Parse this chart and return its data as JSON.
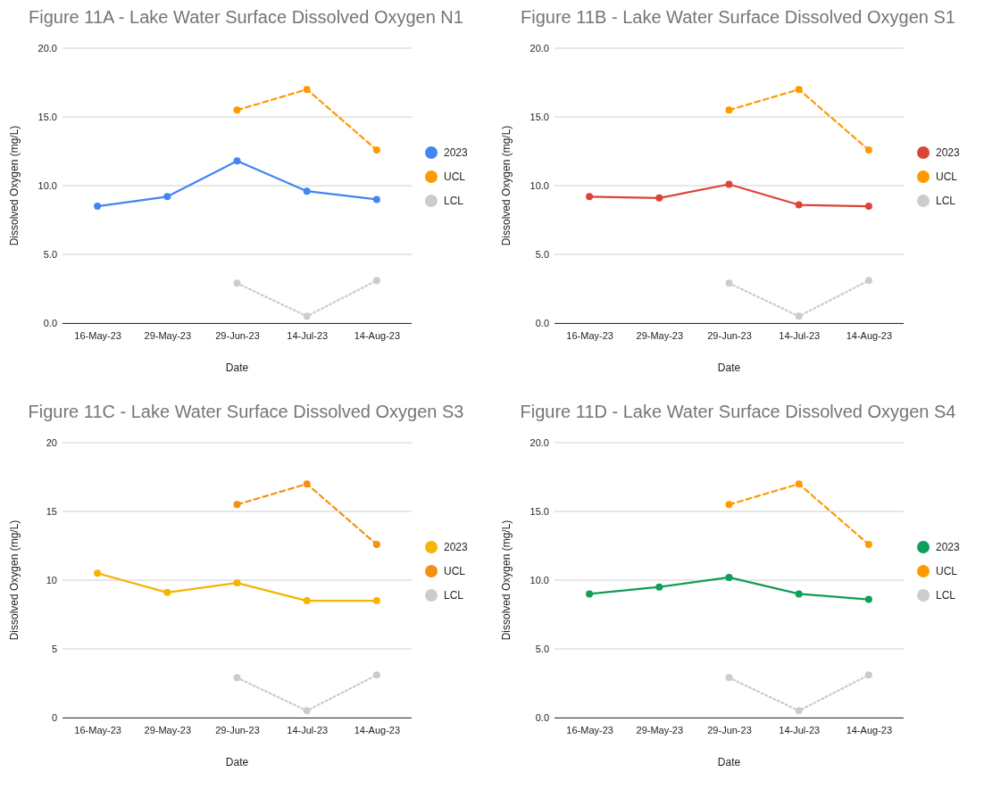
{
  "chart_data": [
    {
      "type": "line",
      "title": "Figure 11A - Lake Water Surface Dissolved Oxygen N1",
      "xlabel": "Date",
      "ylabel": "Dissolved Oxygen (mg/L)",
      "categories": [
        "16-May-23",
        "29-May-23",
        "29-Jun-23",
        "14-Jul-23",
        "14-Aug-23"
      ],
      "ylim": [
        0,
        20
      ],
      "yticks": [
        {
          "value": 0,
          "label": "0.0"
        },
        {
          "value": 5,
          "label": "5.0"
        },
        {
          "value": 10,
          "label": "10.0"
        },
        {
          "value": 15,
          "label": "15.0"
        },
        {
          "value": 20,
          "label": "20.0"
        }
      ],
      "grid": "y",
      "legend": "right",
      "marker": "circle",
      "series": [
        {
          "name": "2023",
          "color": "#4285f4",
          "line_style": "solid",
          "values": [
            8.5,
            9.2,
            11.8,
            9.6,
            9.0
          ]
        },
        {
          "name": "UCL",
          "color": "#ff9900",
          "line_style": "dashed",
          "values": [
            null,
            null,
            15.5,
            17.0,
            12.6
          ]
        },
        {
          "name": "LCL",
          "color": "#cccccc",
          "line_style": "dotted",
          "values": [
            null,
            null,
            2.9,
            0.5,
            3.1
          ]
        }
      ]
    },
    {
      "type": "line",
      "title": "Figure 11B - Lake Water Surface Dissolved Oxygen S1",
      "xlabel": "Date",
      "ylabel": "Dissolved Oxygen (mg/L)",
      "categories": [
        "16-May-23",
        "29-May-23",
        "29-Jun-23",
        "14-Jul-23",
        "14-Aug-23"
      ],
      "ylim": [
        0,
        20
      ],
      "yticks": [
        {
          "value": 0,
          "label": "0.0"
        },
        {
          "value": 5,
          "label": "5.0"
        },
        {
          "value": 10,
          "label": "10.0"
        },
        {
          "value": 15,
          "label": "15.0"
        },
        {
          "value": 20,
          "label": "20.0"
        }
      ],
      "grid": "y",
      "legend": "right",
      "marker": "circle",
      "series": [
        {
          "name": "2023",
          "color": "#db4437",
          "line_style": "solid",
          "values": [
            9.2,
            9.1,
            10.1,
            8.6,
            8.5
          ]
        },
        {
          "name": "UCL",
          "color": "#ff9900",
          "line_style": "dashed",
          "values": [
            null,
            null,
            15.5,
            17.0,
            12.6
          ]
        },
        {
          "name": "LCL",
          "color": "#cccccc",
          "line_style": "dotted",
          "values": [
            null,
            null,
            2.9,
            0.5,
            3.1
          ]
        }
      ]
    },
    {
      "type": "line",
      "title": "Figure 11C - Lake Water Surface Dissolved Oxygen S3",
      "xlabel": "Date",
      "ylabel": "Dissolved Oxygen (mg/L)",
      "categories": [
        "16-May-23",
        "29-May-23",
        "29-Jun-23",
        "14-Jul-23",
        "14-Aug-23"
      ],
      "ylim": [
        0,
        20
      ],
      "yticks": [
        0,
        5,
        10,
        15,
        20
      ],
      "grid": "y",
      "legend": "right",
      "marker": "circle",
      "series": [
        {
          "name": "2023",
          "color": "#f4b400",
          "line_style": "solid",
          "values": [
            10.5,
            9.1,
            9.8,
            8.5,
            8.5
          ]
        },
        {
          "name": "UCL",
          "color": "#f5900f",
          "line_style": "dashed",
          "values": [
            null,
            null,
            15.5,
            17.0,
            12.6
          ]
        },
        {
          "name": "LCL",
          "color": "#cccccc",
          "line_style": "dotted",
          "values": [
            null,
            null,
            2.9,
            0.5,
            3.1
          ]
        }
      ]
    },
    {
      "type": "line",
      "title": "Figure 11D - Lake Water Surface Dissolved Oxygen S4",
      "xlabel": "Date",
      "ylabel": "Dissolved Oxygen (mg/L)",
      "categories": [
        "16-May-23",
        "29-May-23",
        "29-Jun-23",
        "14-Jul-23",
        "14-Aug-23"
      ],
      "ylim": [
        0,
        20
      ],
      "yticks": [
        {
          "value": 0,
          "label": "0.0"
        },
        {
          "value": 5,
          "label": "5.0"
        },
        {
          "value": 10,
          "label": "10.0"
        },
        {
          "value": 15,
          "label": "15.0"
        },
        {
          "value": 20,
          "label": "20.0"
        }
      ],
      "grid": "y",
      "legend": "right",
      "marker": "circle",
      "series": [
        {
          "name": "2023",
          "color": "#0f9d58",
          "line_style": "solid",
          "values": [
            9.0,
            9.5,
            10.2,
            9.0,
            8.6
          ]
        },
        {
          "name": "UCL",
          "color": "#ff9900",
          "line_style": "dashed",
          "values": [
            null,
            null,
            15.5,
            17.0,
            12.6
          ]
        },
        {
          "name": "LCL",
          "color": "#cccccc",
          "line_style": "dotted",
          "values": [
            null,
            null,
            2.9,
            0.5,
            3.1
          ]
        }
      ]
    }
  ]
}
